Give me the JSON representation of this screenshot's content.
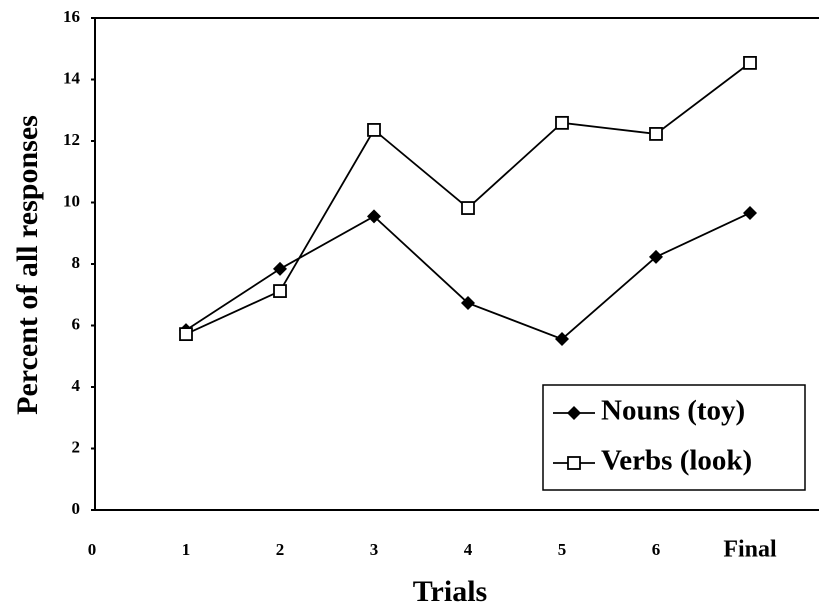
{
  "chart_data": {
    "type": "line",
    "x_label": "Trials",
    "y_label": "Percent of all responses",
    "categories": [
      "0",
      "1",
      "2",
      "3",
      "4",
      "5",
      "6",
      "Final"
    ],
    "series": [
      {
        "name": "Nouns (toy)",
        "color": "#000000",
        "marker": "diamond",
        "values": [
          null,
          5.85,
          7.84,
          9.55,
          6.73,
          5.56,
          8.23,
          9.66
        ]
      },
      {
        "name": "Verbs (look)",
        "color": "#000000",
        "marker": "square",
        "values": [
          null,
          5.72,
          7.12,
          12.36,
          9.82,
          12.59,
          12.23,
          14.54
        ]
      }
    ],
    "ylim": [
      0,
      16
    ],
    "yticks": [
      0,
      2,
      4,
      6,
      8,
      10,
      12,
      14,
      16
    ],
    "grid": false,
    "legend": "lower right"
  }
}
